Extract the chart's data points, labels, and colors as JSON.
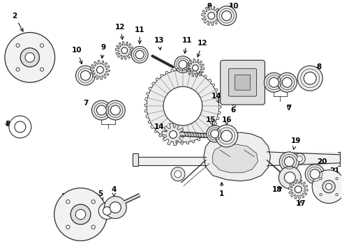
{
  "background_color": "#ffffff",
  "line_color": "#2a2a2a",
  "figsize": [
    4.9,
    3.6
  ],
  "dpi": 100
}
